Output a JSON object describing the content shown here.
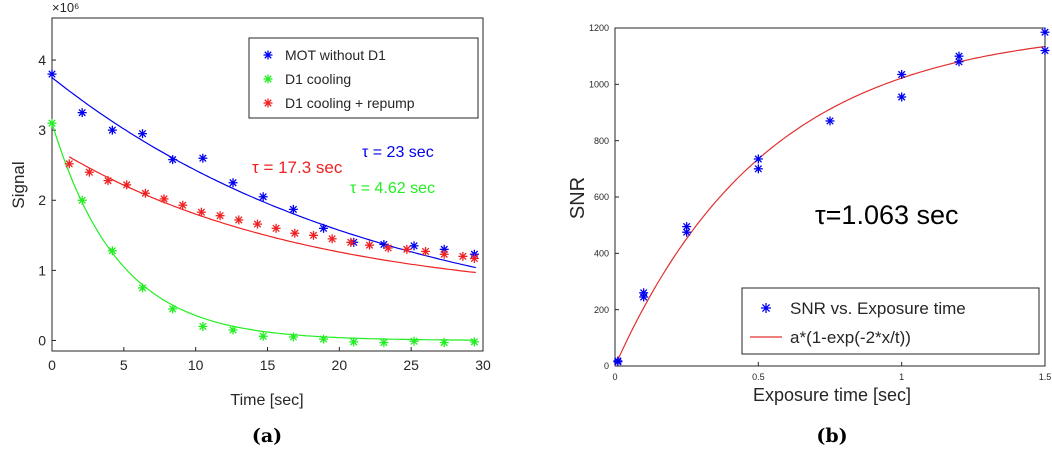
{
  "chart_data": [
    {
      "type": "scatter",
      "panel_label": "(a)",
      "xlabel": "Time [sec]",
      "ylabel": "Signal",
      "y_multiplier_label": "×10⁶",
      "xlim": [
        0,
        30
      ],
      "ylim": [
        -0.15,
        4.6
      ],
      "x_ticks": [
        "0",
        "5",
        "10",
        "15",
        "20",
        "25",
        "30"
      ],
      "y_ticks": [
        "0",
        "1",
        "2",
        "3",
        "4"
      ],
      "legend_position": "top-right",
      "series": [
        {
          "name": "MOT without D1",
          "color": "#0000ee",
          "marker": "star",
          "x": [
            0,
            2.1,
            4.2,
            6.3,
            8.4,
            10.5,
            12.6,
            14.7,
            16.8,
            18.9,
            21.0,
            23.1,
            25.2,
            27.3,
            29.4
          ],
          "y": [
            3.8,
            3.25,
            3.0,
            2.95,
            2.58,
            2.6,
            2.25,
            2.05,
            1.87,
            1.6,
            1.4,
            1.37,
            1.35,
            1.3,
            1.23
          ],
          "fit": {
            "y0": 3.75,
            "tau": 23,
            "offset": 0.0,
            "x_range": [
              0,
              29.5
            ]
          },
          "annotation": "τ = 23 sec"
        },
        {
          "name": "D1 cooling",
          "color": "#22ee22",
          "marker": "star",
          "x": [
            0,
            2.1,
            4.2,
            6.3,
            8.4,
            10.5,
            12.6,
            14.7,
            16.8,
            18.9,
            21.0,
            23.1,
            25.2,
            27.3,
            29.4
          ],
          "y": [
            3.1,
            2.0,
            1.28,
            0.75,
            0.45,
            0.2,
            0.15,
            0.06,
            0.05,
            0.02,
            -0.02,
            -0.03,
            -0.01,
            -0.03,
            -0.02
          ],
          "fit": {
            "y0": 3.1,
            "tau": 4.62,
            "offset": 0.0,
            "x_range": [
              0,
              29.5
            ]
          },
          "annotation": "τ = 4.62 sec"
        },
        {
          "name": "D1 cooling + repump",
          "color": "#ee2222",
          "marker": "star",
          "x": [
            1.2,
            2.6,
            3.9,
            5.2,
            6.5,
            7.8,
            9.1,
            10.4,
            11.7,
            13.0,
            14.3,
            15.6,
            16.9,
            18.2,
            19.5,
            20.8,
            22.1,
            23.4,
            24.7,
            26.0,
            27.3,
            28.6,
            29.4
          ],
          "y": [
            2.52,
            2.4,
            2.28,
            2.22,
            2.1,
            2.02,
            1.93,
            1.83,
            1.78,
            1.72,
            1.66,
            1.6,
            1.53,
            1.5,
            1.45,
            1.4,
            1.36,
            1.32,
            1.3,
            1.27,
            1.23,
            1.2,
            1.17
          ],
          "fit": {
            "y0": 2.62,
            "tau": 17.3,
            "offset": 0.57,
            "x_range": [
              1.2,
              29.5
            ]
          },
          "annotation": "τ = 17.3 sec"
        }
      ]
    },
    {
      "type": "scatter",
      "panel_label": "(b)",
      "xlabel": "Exposure time [sec]",
      "ylabel": "SNR",
      "xlim": [
        0,
        1.5
      ],
      "ylim": [
        0,
        1200
      ],
      "x_ticks": [
        "0",
        "0.5",
        "1",
        "1.5"
      ],
      "y_ticks": [
        "0",
        "200",
        "400",
        "600",
        "800",
        "1000",
        "1200"
      ],
      "legend_position": "bottom-right",
      "annotation": "τ=1.063 sec",
      "series": [
        {
          "name": "SNR vs. Exposure time",
          "color": "#0000ee",
          "marker": "star",
          "x": [
            0.01,
            0.01,
            0.1,
            0.1,
            0.25,
            0.25,
            0.5,
            0.5,
            0.75,
            1.0,
            1.0,
            1.2,
            1.2,
            1.5,
            1.5
          ],
          "y": [
            15,
            18,
            245,
            260,
            475,
            495,
            700,
            735,
            870,
            955,
            1035,
            1080,
            1100,
            1120,
            1185
          ]
        },
        {
          "name": "a*(1-exp(-2*x/t))",
          "color": "#e03030",
          "type": "line",
          "fit": {
            "a": 1206,
            "t": 1.063,
            "x_range": [
              0,
              1.5
            ]
          }
        }
      ]
    }
  ]
}
